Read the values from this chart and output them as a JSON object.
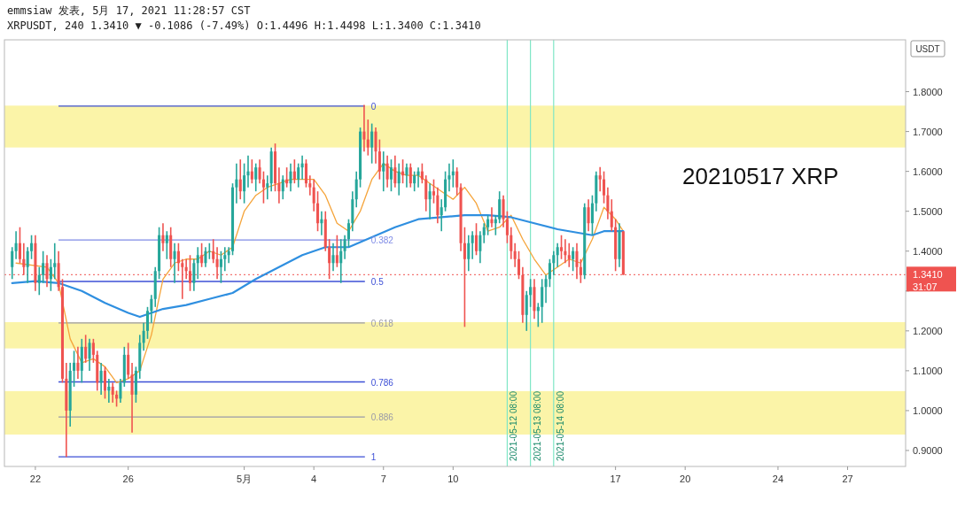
{
  "chart_data": {
    "type": "candlestick",
    "title": "emmsiaw 发表, 5月 17, 2021 11:28:57 CST",
    "subtitle": "XRPUSDT, 240 1.3410 ▼ -0.1086 (-7.49%) O:1.4496 H:1.4498 L:1.3400 C:1.3410",
    "ylabel": "USDT",
    "xlim": [
      "2021-04-20T16:00",
      "2021-05-29T12:00"
    ],
    "ylim": [
      0.86,
      1.93
    ],
    "xticks": [
      {
        "value": "2021-04-22",
        "label": "22"
      },
      {
        "value": "2021-04-26",
        "label": "26"
      },
      {
        "value": "2021-05-01",
        "label": "5月"
      },
      {
        "value": "2021-05-04",
        "label": "4"
      },
      {
        "value": "2021-05-07",
        "label": "7"
      },
      {
        "value": "2021-05-10",
        "label": "10"
      },
      {
        "value": "2021-05-17",
        "label": "17"
      },
      {
        "value": "2021-05-20",
        "label": "20"
      },
      {
        "value": "2021-05-24",
        "label": "24"
      },
      {
        "value": "2021-05-27",
        "label": "27"
      }
    ],
    "yticks": [
      {
        "value": 0.9,
        "label": "0.9000"
      },
      {
        "value": 1.0,
        "label": "1.0000"
      },
      {
        "value": 1.1,
        "label": "1.1000"
      },
      {
        "value": 1.2,
        "label": "1.2000"
      },
      {
        "value": 1.3,
        "label": null
      },
      {
        "value": 1.4,
        "label": "1.4000"
      },
      {
        "value": 1.5,
        "label": "1.5000"
      },
      {
        "value": 1.6,
        "label": "1.6000"
      },
      {
        "value": 1.7,
        "label": "1.7000"
      },
      {
        "value": 1.8,
        "label": "1.8000"
      }
    ],
    "bands": [
      {
        "axis": "y",
        "from": 1.66,
        "to": 1.765,
        "color": "#fbf4a8"
      },
      {
        "axis": "y",
        "from": 1.156,
        "to": 1.222,
        "color": "#fbf4a8"
      },
      {
        "axis": "y",
        "from": 0.94,
        "to": 1.049,
        "color": "#fbf4a8"
      }
    ],
    "ref_lines": [
      {
        "axis": "y",
        "value": 1.764,
        "color": "#3d4fd6"
      },
      {
        "axis": "y",
        "value": 1.428,
        "color": "#7f8be6"
      },
      {
        "axis": "y",
        "value": 1.324,
        "color": "#3d4fd6"
      },
      {
        "axis": "y",
        "value": 1.22,
        "color": "#9a9aa8"
      },
      {
        "axis": "y",
        "value": 1.072,
        "color": "#3d4fd6"
      },
      {
        "axis": "y",
        "value": 0.984,
        "color": "#9a9aa8"
      },
      {
        "axis": "y",
        "value": 0.884,
        "color": "#3d4fd6"
      },
      {
        "axis": "y",
        "value": 1.341,
        "label": "1.3410",
        "color": "#ef5350",
        "line_style": "dotted"
      },
      {
        "axis": "x",
        "value": "2021-05-12T08:00",
        "label": "2021-05-12 08:00",
        "color": "#7fe6c6"
      },
      {
        "axis": "x",
        "value": "2021-05-13T08:00",
        "label": "2021-05-13 08:00",
        "color": "#7fe6c6"
      },
      {
        "axis": "x",
        "value": "2021-05-14T08:00",
        "label": "2021-05-14 08:00",
        "color": "#7fe6c6"
      }
    ],
    "annotations": [
      "20210517 XRP",
      "31:07",
      "0",
      "0.382",
      "0.5",
      "0.618",
      "0.786",
      "0.886",
      "1"
    ],
    "series": [
      {
        "type": "line",
        "color": "#f5a43a",
        "x": [
          "2021-04-21T04:00",
          "2021-04-22T12:00",
          "2021-04-23T00:00",
          "2021-04-23T12:00",
          "2021-04-24T00:00",
          "2021-04-24T12:00",
          "2021-04-25T00:00",
          "2021-04-25T12:00",
          "2021-04-26T00:00",
          "2021-04-26T12:00",
          "2021-04-27T00:00",
          "2021-04-27T12:00",
          "2021-04-28T00:00",
          "2021-04-28T12:00",
          "2021-04-29T00:00",
          "2021-04-29T12:00",
          "2021-04-30T00:00",
          "2021-04-30T12:00",
          "2021-05-01T00:00",
          "2021-05-01T12:00",
          "2021-05-02T00:00",
          "2021-05-02T12:00",
          "2021-05-03T00:00",
          "2021-05-03T12:00",
          "2021-05-04T00:00",
          "2021-05-04T12:00",
          "2021-05-05T00:00",
          "2021-05-05T12:00",
          "2021-05-06T00:00",
          "2021-05-06T12:00",
          "2021-05-07T00:00",
          "2021-05-07T12:00",
          "2021-05-08T00:00",
          "2021-05-08T12:00",
          "2021-05-09T00:00",
          "2021-05-09T12:00",
          "2021-05-10T00:00",
          "2021-05-10T12:00",
          "2021-05-11T00:00",
          "2021-05-11T12:00",
          "2021-05-12T00:00",
          "2021-05-12T12:00",
          "2021-05-13T00:00",
          "2021-05-13T12:00",
          "2021-05-14T00:00",
          "2021-05-14T12:00",
          "2021-05-15T00:00",
          "2021-05-15T12:00",
          "2021-05-16T00:00",
          "2021-05-16T12:00",
          "2021-05-17T00:00",
          "2021-05-17T08:00"
        ],
        "values": [
          1.37,
          1.36,
          1.32,
          1.18,
          1.12,
          1.13,
          1.11,
          1.07,
          1.08,
          1.1,
          1.19,
          1.33,
          1.37,
          1.38,
          1.38,
          1.4,
          1.39,
          1.41,
          1.5,
          1.54,
          1.56,
          1.57,
          1.58,
          1.58,
          1.58,
          1.54,
          1.47,
          1.45,
          1.5,
          1.58,
          1.62,
          1.6,
          1.59,
          1.59,
          1.57,
          1.55,
          1.53,
          1.56,
          1.52,
          1.45,
          1.46,
          1.49,
          1.43,
          1.38,
          1.34,
          1.36,
          1.38,
          1.37,
          1.43,
          1.51,
          1.48,
          1.45
        ]
      },
      {
        "type": "line",
        "color": "#2f8fe0",
        "x": [
          "2021-04-21T00:00",
          "2021-04-22T00:00",
          "2021-04-23T00:00",
          "2021-04-24T00:00",
          "2021-04-25T00:00",
          "2021-04-26T00:00",
          "2021-04-26T12:00",
          "2021-04-27T00:00",
          "2021-04-27T12:00",
          "2021-04-28T12:00",
          "2021-04-29T12:00",
          "2021-04-30T12:00",
          "2021-05-01T12:00",
          "2021-05-02T12:00",
          "2021-05-03T12:00",
          "2021-05-04T00:00",
          "2021-05-04T12:00",
          "2021-05-05T12:00",
          "2021-05-06T12:00",
          "2021-05-07T12:00",
          "2021-05-08T12:00",
          "2021-05-09T12:00",
          "2021-05-10T12:00",
          "2021-05-11T12:00",
          "2021-05-12T12:00",
          "2021-05-13T12:00",
          "2021-05-14T12:00",
          "2021-05-15T12:00",
          "2021-05-16T00:00",
          "2021-05-16T12:00",
          "2021-05-17T08:00"
        ],
        "values": [
          1.32,
          1.325,
          1.32,
          1.3,
          1.27,
          1.245,
          1.235,
          1.245,
          1.255,
          1.265,
          1.28,
          1.295,
          1.33,
          1.36,
          1.39,
          1.4,
          1.41,
          1.41,
          1.435,
          1.46,
          1.48,
          1.485,
          1.49,
          1.49,
          1.485,
          1.47,
          1.455,
          1.445,
          1.44,
          1.45,
          1.45
        ]
      }
    ],
    "x": [
      "2021-04-21T00:00",
      "2021-04-21T04:00",
      "2021-04-21T08:00",
      "2021-04-21T12:00",
      "2021-04-21T16:00",
      "2021-04-21T20:00",
      "2021-04-22T00:00",
      "2021-04-22T04:00",
      "2021-04-22T08:00",
      "2021-04-22T12:00",
      "2021-04-22T16:00",
      "2021-04-22T20:00",
      "2021-04-23T00:00",
      "2021-04-23T04:00",
      "2021-04-23T08:00",
      "2021-04-23T12:00",
      "2021-04-23T16:00",
      "2021-04-23T20:00",
      "2021-04-24T00:00",
      "2021-04-24T04:00",
      "2021-04-24T08:00",
      "2021-04-24T12:00",
      "2021-04-24T16:00",
      "2021-04-24T20:00",
      "2021-04-25T00:00",
      "2021-04-25T04:00",
      "2021-04-25T08:00",
      "2021-04-25T12:00",
      "2021-04-25T16:00",
      "2021-04-25T20:00",
      "2021-04-26T00:00",
      "2021-04-26T04:00",
      "2021-04-26T08:00",
      "2021-04-26T12:00",
      "2021-04-26T16:00",
      "2021-04-26T20:00",
      "2021-04-27T00:00",
      "2021-04-27T04:00",
      "2021-04-27T08:00",
      "2021-04-27T12:00",
      "2021-04-27T16:00",
      "2021-04-27T20:00",
      "2021-04-28T00:00",
      "2021-04-28T04:00",
      "2021-04-28T08:00",
      "2021-04-28T12:00",
      "2021-04-28T16:00",
      "2021-04-28T20:00",
      "2021-04-29T00:00",
      "2021-04-29T04:00",
      "2021-04-29T08:00",
      "2021-04-29T12:00",
      "2021-04-29T16:00",
      "2021-04-29T20:00",
      "2021-04-30T00:00",
      "2021-04-30T04:00",
      "2021-04-30T08:00",
      "2021-04-30T12:00",
      "2021-04-30T16:00",
      "2021-04-30T20:00",
      "2021-05-01T00:00",
      "2021-05-01T04:00",
      "2021-05-01T08:00",
      "2021-05-01T12:00",
      "2021-05-01T16:00",
      "2021-05-01T20:00",
      "2021-05-02T00:00",
      "2021-05-02T04:00",
      "2021-05-02T08:00",
      "2021-05-02T12:00",
      "2021-05-02T16:00",
      "2021-05-02T20:00",
      "2021-05-03T00:00",
      "2021-05-03T04:00",
      "2021-05-03T08:00",
      "2021-05-03T12:00",
      "2021-05-03T16:00",
      "2021-05-03T20:00",
      "2021-05-04T00:00",
      "2021-05-04T04:00",
      "2021-05-04T08:00",
      "2021-05-04T12:00",
      "2021-05-04T16:00",
      "2021-05-04T20:00",
      "2021-05-05T00:00",
      "2021-05-05T04:00",
      "2021-05-05T08:00",
      "2021-05-05T12:00",
      "2021-05-05T16:00",
      "2021-05-05T20:00",
      "2021-05-06T00:00",
      "2021-05-06T04:00",
      "2021-05-06T08:00",
      "2021-05-06T12:00",
      "2021-05-06T16:00",
      "2021-05-06T20:00",
      "2021-05-07T00:00",
      "2021-05-07T04:00",
      "2021-05-07T08:00",
      "2021-05-07T12:00",
      "2021-05-07T16:00",
      "2021-05-07T20:00",
      "2021-05-08T00:00",
      "2021-05-08T04:00",
      "2021-05-08T08:00",
      "2021-05-08T12:00",
      "2021-05-08T16:00",
      "2021-05-08T20:00",
      "2021-05-09T00:00",
      "2021-05-09T04:00",
      "2021-05-09T08:00",
      "2021-05-09T12:00",
      "2021-05-09T16:00",
      "2021-05-09T20:00",
      "2021-05-10T00:00",
      "2021-05-10T04:00",
      "2021-05-10T08:00",
      "2021-05-10T12:00",
      "2021-05-10T16:00",
      "2021-05-10T20:00",
      "2021-05-11T00:00",
      "2021-05-11T04:00",
      "2021-05-11T08:00",
      "2021-05-11T12:00",
      "2021-05-11T16:00",
      "2021-05-11T20:00",
      "2021-05-12T00:00",
      "2021-05-12T04:00",
      "2021-05-12T08:00",
      "2021-05-12T12:00",
      "2021-05-12T16:00",
      "2021-05-12T20:00",
      "2021-05-13T00:00",
      "2021-05-13T04:00",
      "2021-05-13T08:00",
      "2021-05-13T12:00",
      "2021-05-13T16:00",
      "2021-05-13T20:00",
      "2021-05-14T00:00",
      "2021-05-14T04:00",
      "2021-05-14T08:00",
      "2021-05-14T12:00",
      "2021-05-14T16:00",
      "2021-05-14T20:00",
      "2021-05-15T00:00",
      "2021-05-15T04:00",
      "2021-05-15T08:00",
      "2021-05-15T12:00",
      "2021-05-15T16:00",
      "2021-05-15T20:00",
      "2021-05-16T00:00",
      "2021-05-16T04:00",
      "2021-05-16T08:00",
      "2021-05-16T12:00",
      "2021-05-16T16:00",
      "2021-05-16T20:00",
      "2021-05-17T00:00",
      "2021-05-17T04:00",
      "2021-05-17T08:00"
    ],
    "ohlc": [
      [
        1.36,
        1.41,
        1.33,
        1.4
      ],
      [
        1.4,
        1.45,
        1.38,
        1.42
      ],
      [
        1.42,
        1.46,
        1.37,
        1.38
      ],
      [
        1.38,
        1.42,
        1.34,
        1.36
      ],
      [
        1.36,
        1.41,
        1.32,
        1.4
      ],
      [
        1.4,
        1.44,
        1.38,
        1.42
      ],
      [
        1.42,
        1.44,
        1.3,
        1.32
      ],
      [
        1.32,
        1.36,
        1.29,
        1.34
      ],
      [
        1.34,
        1.4,
        1.32,
        1.37
      ],
      [
        1.37,
        1.39,
        1.31,
        1.33
      ],
      [
        1.33,
        1.38,
        1.3,
        1.36
      ],
      [
        1.36,
        1.42,
        1.33,
        1.37
      ],
      [
        1.37,
        1.4,
        1.3,
        1.31
      ],
      [
        1.31,
        1.33,
        1.07,
        1.08
      ],
      [
        1.08,
        1.12,
        0.884,
        1.0
      ],
      [
        1.0,
        1.12,
        0.96,
        1.1
      ],
      [
        1.1,
        1.15,
        1.06,
        1.12
      ],
      [
        1.12,
        1.16,
        1.08,
        1.1
      ],
      [
        1.1,
        1.18,
        1.07,
        1.16
      ],
      [
        1.16,
        1.19,
        1.12,
        1.13
      ],
      [
        1.13,
        1.18,
        1.1,
        1.17
      ],
      [
        1.17,
        1.18,
        1.12,
        1.14
      ],
      [
        1.14,
        1.15,
        1.05,
        1.07
      ],
      [
        1.07,
        1.12,
        1.04,
        1.1
      ],
      [
        1.1,
        1.11,
        1.03,
        1.05
      ],
      [
        1.05,
        1.08,
        1.02,
        1.06
      ],
      [
        1.06,
        1.07,
        1.02,
        1.04
      ],
      [
        1.04,
        1.05,
        1.01,
        1.03
      ],
      [
        1.03,
        1.08,
        1.02,
        1.07
      ],
      [
        1.07,
        1.16,
        1.06,
        1.14
      ],
      [
        1.14,
        1.17,
        1.08,
        1.09
      ],
      [
        1.09,
        1.12,
        0.945,
        1.04
      ],
      [
        1.04,
        1.11,
        1.02,
        1.1
      ],
      [
        1.1,
        1.19,
        1.08,
        1.17
      ],
      [
        1.17,
        1.22,
        1.15,
        1.2
      ],
      [
        1.2,
        1.26,
        1.18,
        1.25
      ],
      [
        1.25,
        1.29,
        1.22,
        1.28
      ],
      [
        1.28,
        1.36,
        1.26,
        1.35
      ],
      [
        1.35,
        1.46,
        1.33,
        1.44
      ],
      [
        1.44,
        1.47,
        1.4,
        1.42
      ],
      [
        1.42,
        1.45,
        1.38,
        1.44
      ],
      [
        1.44,
        1.46,
        1.36,
        1.38
      ],
      [
        1.38,
        1.42,
        1.32,
        1.4
      ],
      [
        1.4,
        1.42,
        1.35,
        1.37
      ],
      [
        1.37,
        1.38,
        1.28,
        1.36
      ],
      [
        1.36,
        1.38,
        1.33,
        1.35
      ],
      [
        1.35,
        1.39,
        1.3,
        1.32
      ],
      [
        1.32,
        1.38,
        1.3,
        1.37
      ],
      [
        1.37,
        1.41,
        1.33,
        1.39
      ],
      [
        1.39,
        1.42,
        1.36,
        1.37
      ],
      [
        1.37,
        1.41,
        1.36,
        1.4
      ],
      [
        1.4,
        1.42,
        1.38,
        1.4
      ],
      [
        1.4,
        1.43,
        1.37,
        1.38
      ],
      [
        1.38,
        1.41,
        1.33,
        1.36
      ],
      [
        1.36,
        1.4,
        1.32,
        1.38
      ],
      [
        1.38,
        1.41,
        1.35,
        1.39
      ],
      [
        1.39,
        1.41,
        1.37,
        1.4
      ],
      [
        1.4,
        1.57,
        1.39,
        1.56
      ],
      [
        1.56,
        1.62,
        1.52,
        1.58
      ],
      [
        1.58,
        1.63,
        1.53,
        1.55
      ],
      [
        1.55,
        1.62,
        1.52,
        1.59
      ],
      [
        1.59,
        1.64,
        1.56,
        1.6
      ],
      [
        1.6,
        1.63,
        1.57,
        1.58
      ],
      [
        1.58,
        1.62,
        1.55,
        1.61
      ],
      [
        1.61,
        1.63,
        1.57,
        1.58
      ],
      [
        1.58,
        1.6,
        1.52,
        1.56
      ],
      [
        1.56,
        1.59,
        1.53,
        1.57
      ],
      [
        1.57,
        1.66,
        1.55,
        1.65
      ],
      [
        1.65,
        1.67,
        1.55,
        1.57
      ],
      [
        1.57,
        1.61,
        1.52,
        1.55
      ],
      [
        1.55,
        1.59,
        1.53,
        1.58
      ],
      [
        1.58,
        1.61,
        1.56,
        1.57
      ],
      [
        1.57,
        1.62,
        1.55,
        1.6
      ],
      [
        1.6,
        1.63,
        1.57,
        1.58
      ],
      [
        1.58,
        1.62,
        1.56,
        1.61
      ],
      [
        1.61,
        1.64,
        1.58,
        1.62
      ],
      [
        1.62,
        1.63,
        1.56,
        1.57
      ],
      [
        1.57,
        1.59,
        1.54,
        1.56
      ],
      [
        1.56,
        1.58,
        1.5,
        1.52
      ],
      [
        1.52,
        1.55,
        1.45,
        1.47
      ],
      [
        1.47,
        1.5,
        1.44,
        1.48
      ],
      [
        1.48,
        1.5,
        1.4,
        1.41
      ],
      [
        1.41,
        1.43,
        1.33,
        1.37
      ],
      [
        1.37,
        1.42,
        1.35,
        1.39
      ],
      [
        1.39,
        1.44,
        1.36,
        1.37
      ],
      [
        1.37,
        1.43,
        1.32,
        1.4
      ],
      [
        1.4,
        1.44,
        1.38,
        1.43
      ],
      [
        1.43,
        1.48,
        1.41,
        1.47
      ],
      [
        1.47,
        1.55,
        1.45,
        1.53
      ],
      [
        1.53,
        1.6,
        1.51,
        1.58
      ],
      [
        1.58,
        1.71,
        1.56,
        1.7
      ],
      [
        1.7,
        1.767,
        1.65,
        1.68
      ],
      [
        1.68,
        1.73,
        1.64,
        1.66
      ],
      [
        1.66,
        1.72,
        1.62,
        1.7
      ],
      [
        1.7,
        1.71,
        1.62,
        1.65
      ],
      [
        1.65,
        1.68,
        1.58,
        1.6
      ],
      [
        1.6,
        1.65,
        1.55,
        1.62
      ],
      [
        1.62,
        1.64,
        1.56,
        1.58
      ],
      [
        1.58,
        1.63,
        1.55,
        1.61
      ],
      [
        1.61,
        1.64,
        1.56,
        1.57
      ],
      [
        1.57,
        1.62,
        1.54,
        1.6
      ],
      [
        1.6,
        1.63,
        1.57,
        1.59
      ],
      [
        1.59,
        1.62,
        1.56,
        1.61
      ],
      [
        1.61,
        1.62,
        1.56,
        1.57
      ],
      [
        1.57,
        1.6,
        1.55,
        1.59
      ],
      [
        1.59,
        1.61,
        1.56,
        1.6
      ],
      [
        1.6,
        1.62,
        1.57,
        1.58
      ],
      [
        1.58,
        1.59,
        1.5,
        1.53
      ],
      [
        1.53,
        1.57,
        1.48,
        1.55
      ],
      [
        1.55,
        1.58,
        1.52,
        1.54
      ],
      [
        1.54,
        1.56,
        1.47,
        1.49
      ],
      [
        1.49,
        1.53,
        1.45,
        1.51
      ],
      [
        1.51,
        1.6,
        1.5,
        1.58
      ],
      [
        1.58,
        1.62,
        1.55,
        1.59
      ],
      [
        1.59,
        1.63,
        1.56,
        1.6
      ],
      [
        1.6,
        1.61,
        1.54,
        1.56
      ],
      [
        1.56,
        1.57,
        1.4,
        1.42
      ],
      [
        1.42,
        1.46,
        1.21,
        1.38
      ],
      [
        1.38,
        1.44,
        1.35,
        1.42
      ],
      [
        1.42,
        1.45,
        1.38,
        1.44
      ],
      [
        1.44,
        1.47,
        1.39,
        1.4
      ],
      [
        1.4,
        1.45,
        1.37,
        1.44
      ],
      [
        1.44,
        1.47,
        1.42,
        1.46
      ],
      [
        1.46,
        1.49,
        1.44,
        1.48
      ],
      [
        1.48,
        1.51,
        1.46,
        1.47
      ],
      [
        1.47,
        1.49,
        1.44,
        1.48
      ],
      [
        1.48,
        1.55,
        1.47,
        1.53
      ],
      [
        1.53,
        1.54,
        1.46,
        1.48
      ],
      [
        1.48,
        1.5,
        1.42,
        1.44
      ],
      [
        1.44,
        1.46,
        1.38,
        1.4
      ],
      [
        1.4,
        1.42,
        1.36,
        1.38
      ],
      [
        1.38,
        1.4,
        1.33,
        1.34
      ],
      [
        1.34,
        1.36,
        1.22,
        1.24
      ],
      [
        1.24,
        1.3,
        1.2,
        1.29
      ],
      [
        1.29,
        1.33,
        1.26,
        1.31
      ],
      [
        1.31,
        1.33,
        1.23,
        1.25
      ],
      [
        1.25,
        1.27,
        1.21,
        1.26
      ],
      [
        1.26,
        1.33,
        1.22,
        1.31
      ],
      [
        1.31,
        1.34,
        1.27,
        1.33
      ],
      [
        1.33,
        1.38,
        1.31,
        1.37
      ],
      [
        1.37,
        1.4,
        1.34,
        1.39
      ],
      [
        1.39,
        1.42,
        1.36,
        1.41
      ],
      [
        1.41,
        1.44,
        1.38,
        1.4
      ],
      [
        1.4,
        1.43,
        1.37,
        1.39
      ],
      [
        1.39,
        1.42,
        1.36,
        1.38
      ],
      [
        1.38,
        1.41,
        1.35,
        1.4
      ],
      [
        1.4,
        1.42,
        1.33,
        1.36
      ],
      [
        1.36,
        1.38,
        1.32,
        1.34
      ],
      [
        1.34,
        1.52,
        1.33,
        1.51
      ],
      [
        1.51,
        1.53,
        1.45,
        1.47
      ],
      [
        1.47,
        1.54,
        1.44,
        1.52
      ],
      [
        1.52,
        1.6,
        1.5,
        1.59
      ],
      [
        1.59,
        1.611,
        1.55,
        1.58
      ],
      [
        1.58,
        1.6,
        1.52,
        1.54
      ],
      [
        1.54,
        1.56,
        1.48,
        1.5
      ],
      [
        1.5,
        1.53,
        1.45,
        1.46
      ],
      [
        1.46,
        1.48,
        1.35,
        1.38
      ],
      [
        1.38,
        1.47,
        1.36,
        1.4496
      ],
      [
        1.4496,
        1.4498,
        1.34,
        1.341
      ]
    ]
  }
}
